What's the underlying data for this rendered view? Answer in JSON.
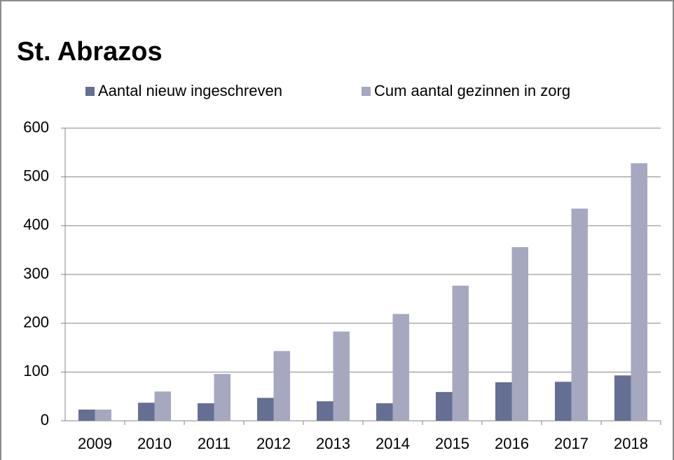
{
  "chart_data": {
    "type": "bar",
    "title": "St. Abrazos",
    "categories": [
      "2009",
      "2010",
      "2011",
      "2012",
      "2013",
      "2014",
      "2015",
      "2016",
      "2017",
      "2018"
    ],
    "series": [
      {
        "name": "Aantal nieuw ingeschreven",
        "color": "#656f93",
        "values": [
          23,
          37,
          36,
          47,
          40,
          36,
          59,
          79,
          80,
          93
        ]
      },
      {
        "name": "Cum aantal gezinnen in zorg",
        "color": "#a5a8bf",
        "values": [
          23,
          60,
          96,
          143,
          183,
          219,
          277,
          356,
          435,
          528
        ]
      }
    ],
    "ylim": [
      0,
      600
    ],
    "yticks": [
      0,
      100,
      200,
      300,
      400,
      500,
      600
    ],
    "grid": true,
    "legend": "top"
  }
}
